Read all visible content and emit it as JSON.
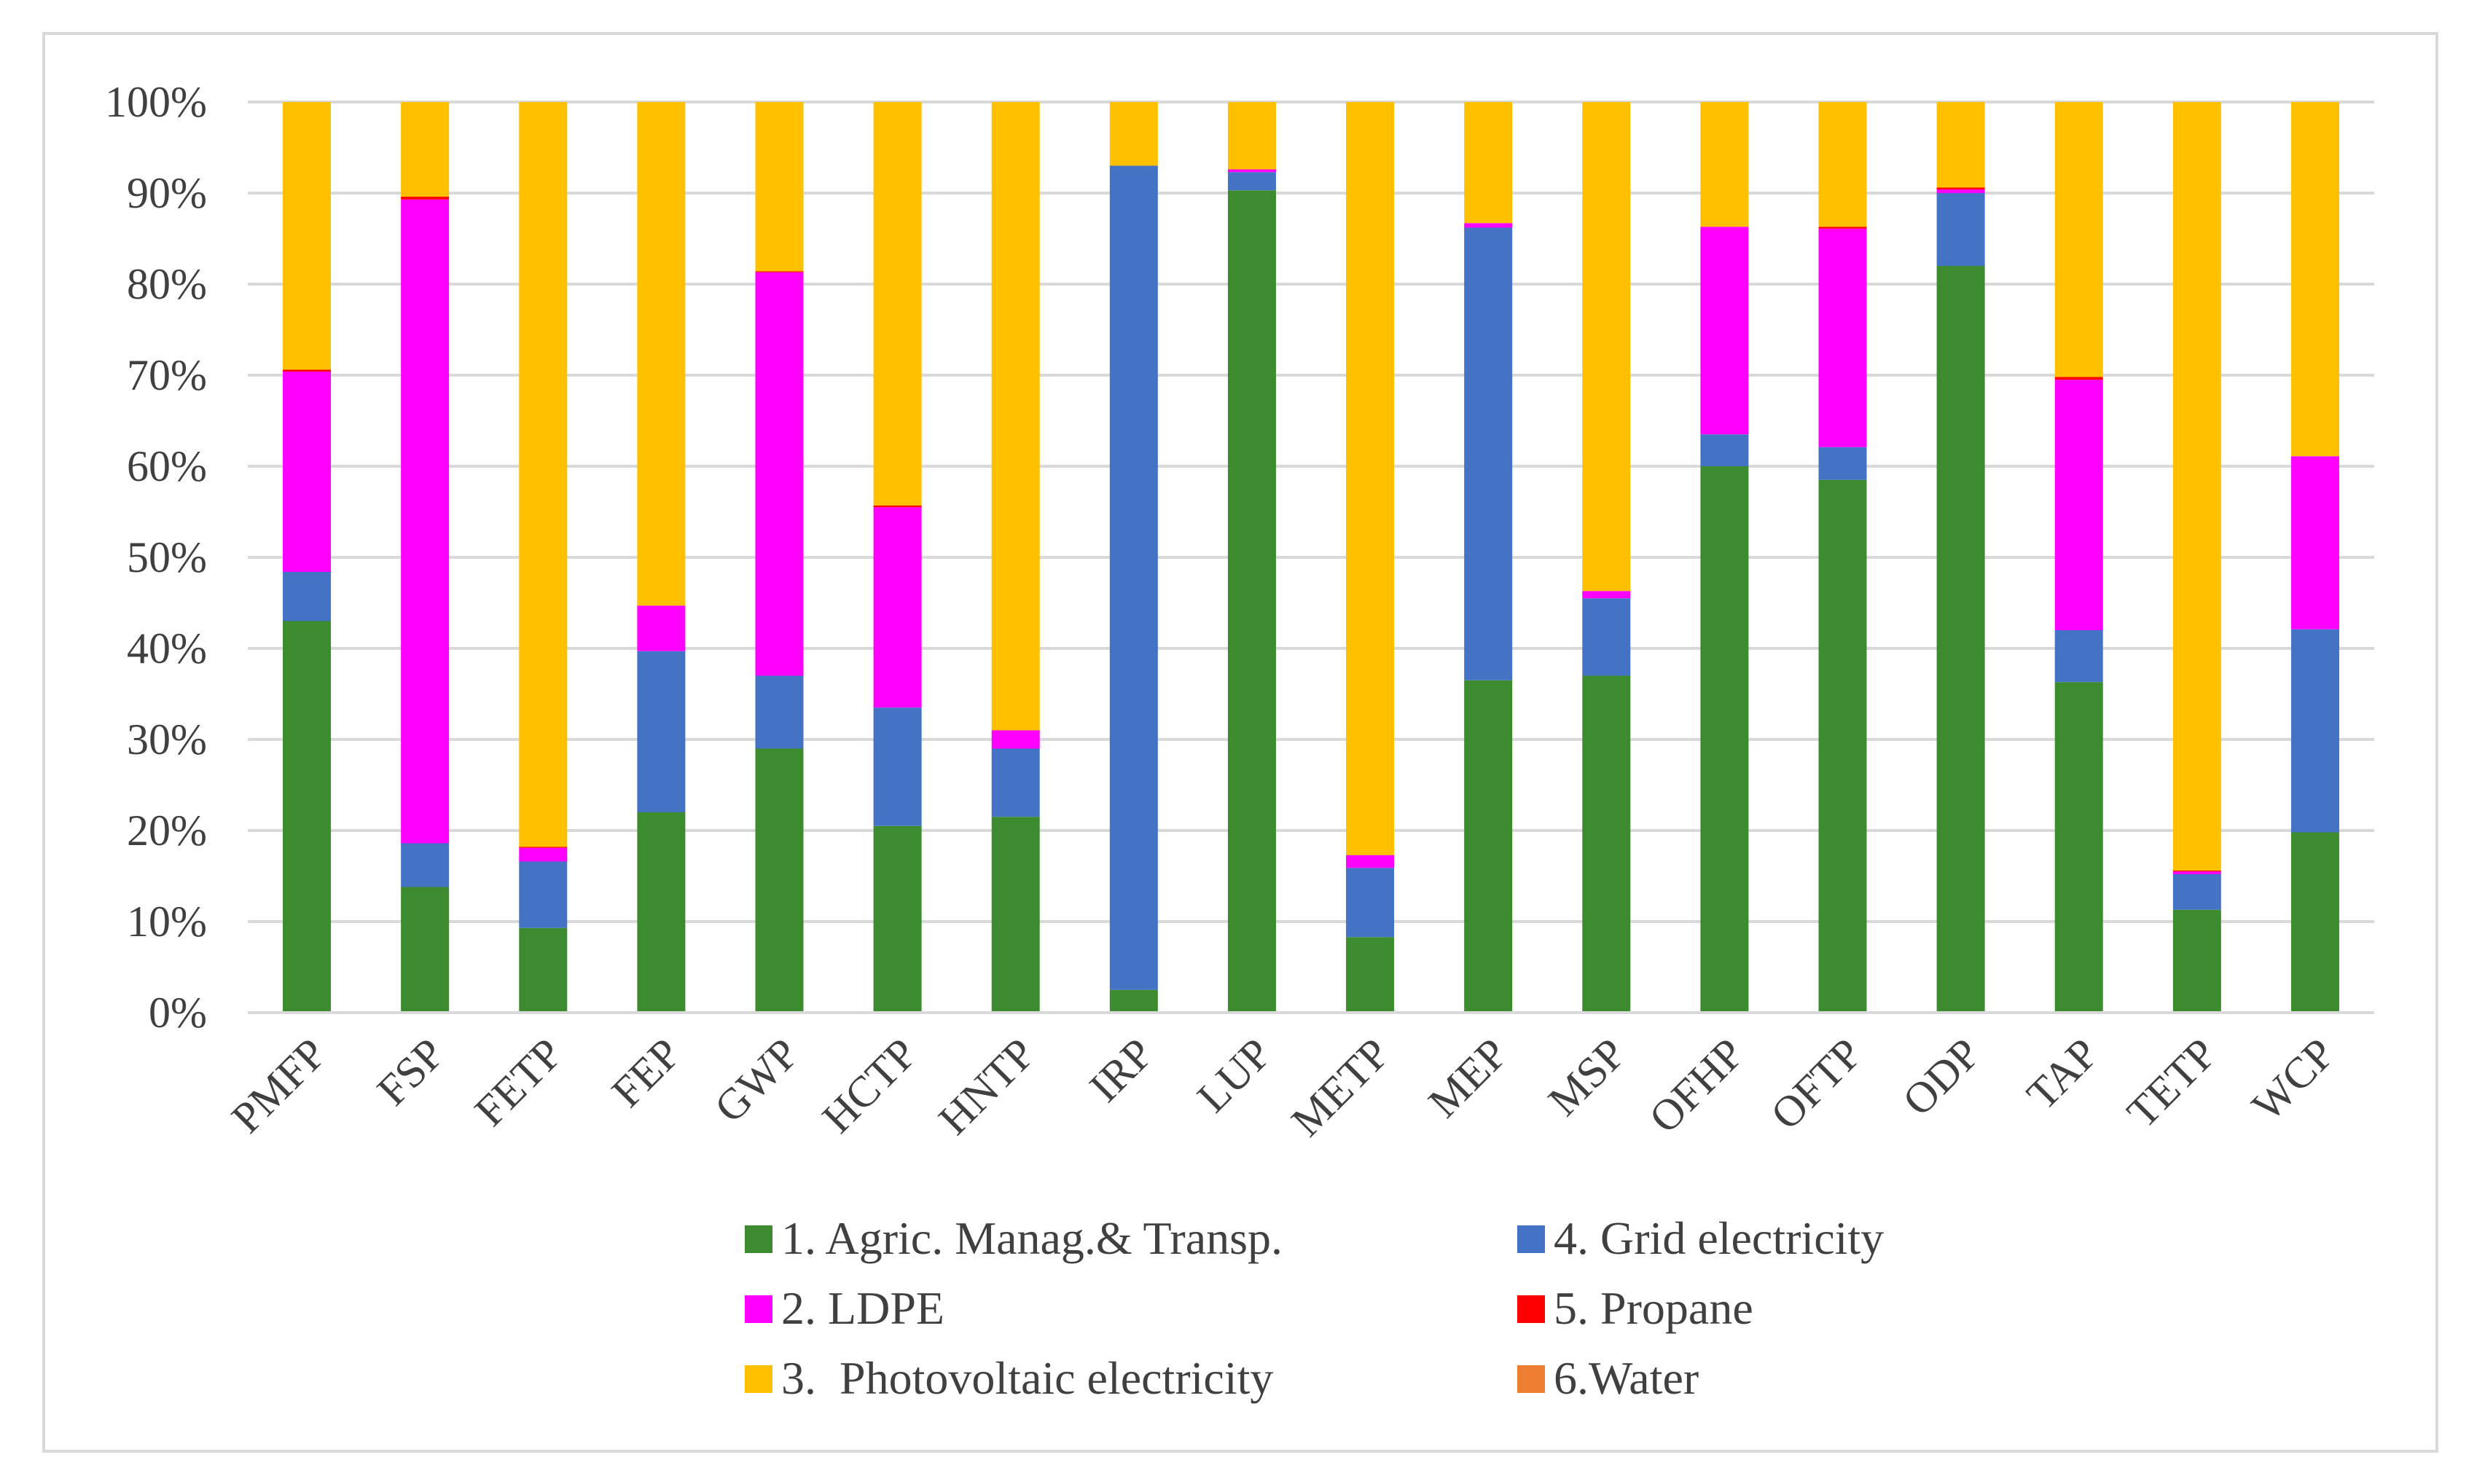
{
  "chart_data": {
    "type": "bar",
    "stacked": true,
    "percent": true,
    "title": "",
    "xlabel": "",
    "ylabel": "",
    "ylim": [
      0,
      100
    ],
    "yticks": [
      "0%",
      "10%",
      "20%",
      "30%",
      "40%",
      "50%",
      "60%",
      "70%",
      "80%",
      "90%",
      "100%"
    ],
    "grid": true,
    "legend_position": "bottom",
    "categories": [
      "PMFP",
      "FSP",
      "FETP",
      "FEP",
      "GWP",
      "HCTP",
      "HNTP",
      "IRP",
      "LUP",
      "METP",
      "MEP",
      "MSP",
      "OFHP",
      "OFTP",
      "ODP",
      "TAP",
      "TETP",
      "WCP"
    ],
    "series": [
      {
        "name": "1. Agric. Manag.& Transp.",
        "color": "#3c8c2f",
        "values": [
          43,
          13.8,
          9.3,
          22,
          29,
          20.5,
          21.5,
          2.5,
          90.3,
          8.3,
          36.5,
          37,
          60,
          58.5,
          82,
          36.3,
          11.3,
          19.8
        ]
      },
      {
        "name": "2. LDPE",
        "color": "#ff00ff",
        "values": [
          22,
          70.7,
          1.5,
          5,
          44.3,
          22,
          2,
          0,
          0.3,
          1.4,
          0.5,
          0.8,
          22.8,
          24,
          0.4,
          27.5,
          0.3,
          19
        ]
      },
      {
        "name": "3.  Photovoltaic electricity",
        "color": "#ffc000",
        "values": [
          29.4,
          10.4,
          81.8,
          55.3,
          18.6,
          44.3,
          69,
          7,
          7.4,
          82.7,
          13.3,
          53.7,
          13.7,
          13.7,
          9.4,
          30.2,
          84.4,
          38.9
        ]
      },
      {
        "name": "4. Grid electricity",
        "color": "#4472c4",
        "values": [
          5.4,
          4.8,
          7.3,
          17.7,
          8,
          13,
          7.5,
          90.5,
          2,
          7.6,
          49.7,
          8.5,
          3.5,
          3.6,
          8,
          5.7,
          3.9,
          22.3
        ]
      },
      {
        "name": "5. Propane",
        "color": "#ff0000",
        "values": [
          0.2,
          0.3,
          0.1,
          0,
          0.1,
          0.2,
          0,
          0,
          0,
          0,
          0,
          0,
          0,
          0.2,
          0.2,
          0.3,
          0.1,
          0
        ]
      },
      {
        "name": "6.Water",
        "color": "#ed7d31",
        "values": [
          0,
          0,
          0,
          0,
          0,
          0,
          0,
          0,
          0,
          0,
          0,
          0,
          0,
          0,
          0,
          0,
          0,
          0
        ]
      }
    ],
    "stack_order": [
      "1. Agric. Manag.& Transp.",
      "4. Grid electricity",
      "2. LDPE",
      "5. Propane",
      "3.  Photovoltaic electricity",
      "6.Water"
    ],
    "legend_order": [
      "1. Agric. Manag.& Transp.",
      "4. Grid electricity",
      "2. LDPE",
      "5. Propane",
      "3.  Photovoltaic electricity",
      "6.Water"
    ]
  }
}
